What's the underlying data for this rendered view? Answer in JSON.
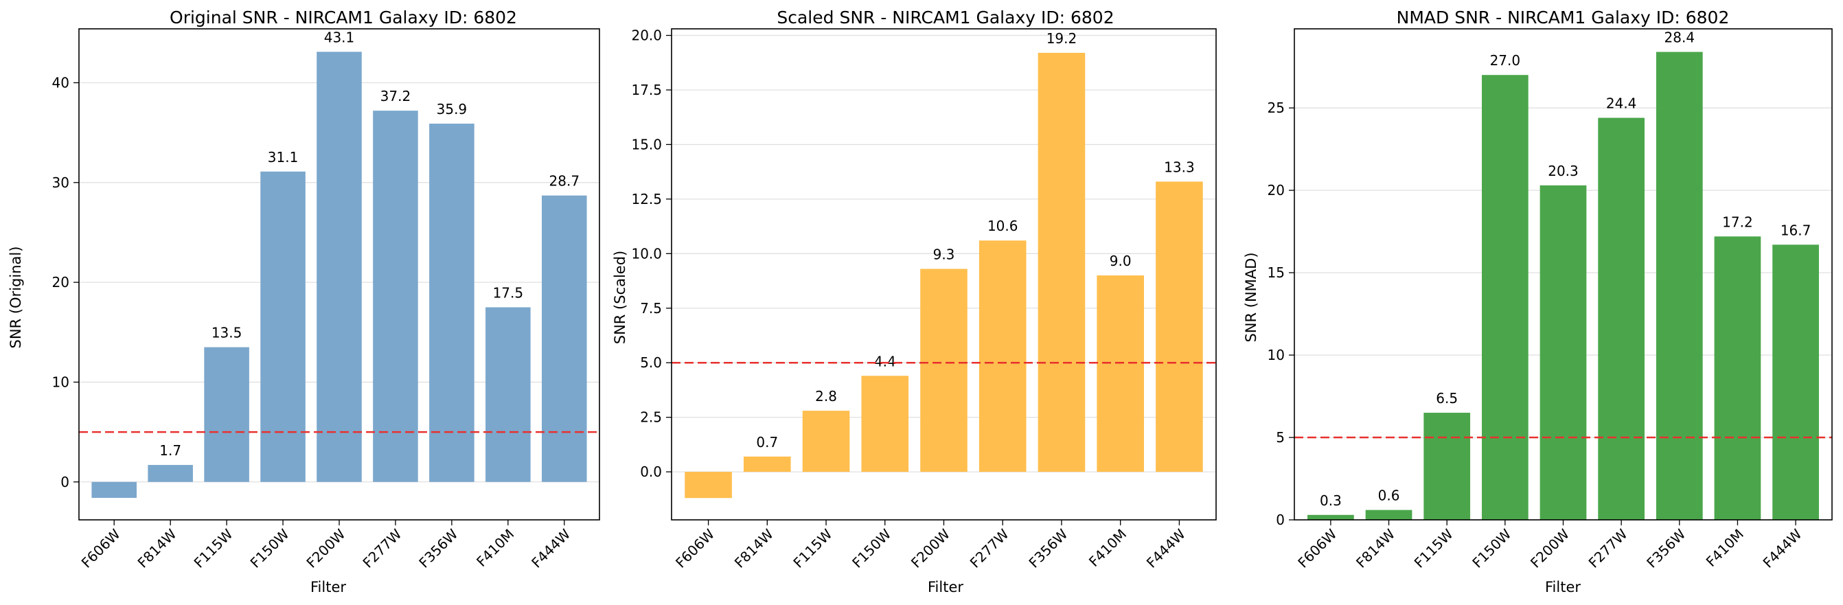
{
  "figure": {
    "background": "#ffffff"
  },
  "chart_data": [
    {
      "type": "bar",
      "title": "Original SNR - NIRCAM1 Galaxy ID: 6802",
      "xlabel": "Filter",
      "ylabel": "SNR (Original)",
      "categories": [
        "F606W",
        "F814W",
        "F115W",
        "F150W",
        "F200W",
        "F277W",
        "F356W",
        "F410M",
        "F444W"
      ],
      "values": [
        -1.6,
        1.7,
        13.5,
        31.1,
        43.1,
        37.2,
        35.9,
        17.5,
        28.7
      ],
      "data_labels": [
        "",
        "1.7",
        "13.5",
        "31.1",
        "43.1",
        "37.2",
        "35.9",
        "17.5",
        "28.7"
      ],
      "ylim": [
        -3.8,
        45.4
      ],
      "yticks": [
        0,
        10,
        20,
        30,
        40
      ],
      "ytick_labels": [
        "0",
        "10",
        "20",
        "30",
        "40"
      ],
      "threshold": 5,
      "bar_color": "#7ba7cc",
      "threshold_color": "#e8312f",
      "grid": true
    },
    {
      "type": "bar",
      "title": "Scaled SNR - NIRCAM1 Galaxy ID: 6802",
      "xlabel": "Filter",
      "ylabel": "SNR (Scaled)",
      "categories": [
        "F606W",
        "F814W",
        "F115W",
        "F150W",
        "F200W",
        "F277W",
        "F356W",
        "F410M",
        "F444W"
      ],
      "values": [
        -1.2,
        0.7,
        2.8,
        4.4,
        9.3,
        10.6,
        19.2,
        9.0,
        13.3
      ],
      "data_labels": [
        "",
        "0.7",
        "2.8",
        "4.4",
        "9.3",
        "10.6",
        "19.2",
        "9.0",
        "13.3"
      ],
      "ylim": [
        -2.2,
        20.3
      ],
      "yticks": [
        0,
        2.5,
        5,
        7.5,
        10,
        12.5,
        15,
        17.5,
        20
      ],
      "ytick_labels": [
        "0.0",
        "2.5",
        "5.0",
        "7.5",
        "10.0",
        "12.5",
        "15.0",
        "17.5",
        "20.0"
      ],
      "threshold": 5,
      "bar_color": "#ffbe4d",
      "threshold_color": "#e8312f",
      "grid": true
    },
    {
      "type": "bar",
      "title": "NMAD SNR - NIRCAM1 Galaxy ID: 6802",
      "xlabel": "Filter",
      "ylabel": "SNR (NMAD)",
      "categories": [
        "F606W",
        "F814W",
        "F115W",
        "F150W",
        "F200W",
        "F277W",
        "F356W",
        "F410M",
        "F444W"
      ],
      "values": [
        0.3,
        0.6,
        6.5,
        27.0,
        20.3,
        24.4,
        28.4,
        17.2,
        16.7
      ],
      "data_labels": [
        "0.3",
        "0.6",
        "6.5",
        "27.0",
        "20.3",
        "24.4",
        "28.4",
        "17.2",
        "16.7"
      ],
      "ylim": [
        0,
        29.8
      ],
      "yticks": [
        0,
        5,
        10,
        15,
        20,
        25
      ],
      "ytick_labels": [
        "0",
        "5",
        "10",
        "15",
        "20",
        "25"
      ],
      "threshold": 5,
      "bar_color": "#4ba64b",
      "threshold_color": "#e8312f",
      "grid": true
    }
  ]
}
